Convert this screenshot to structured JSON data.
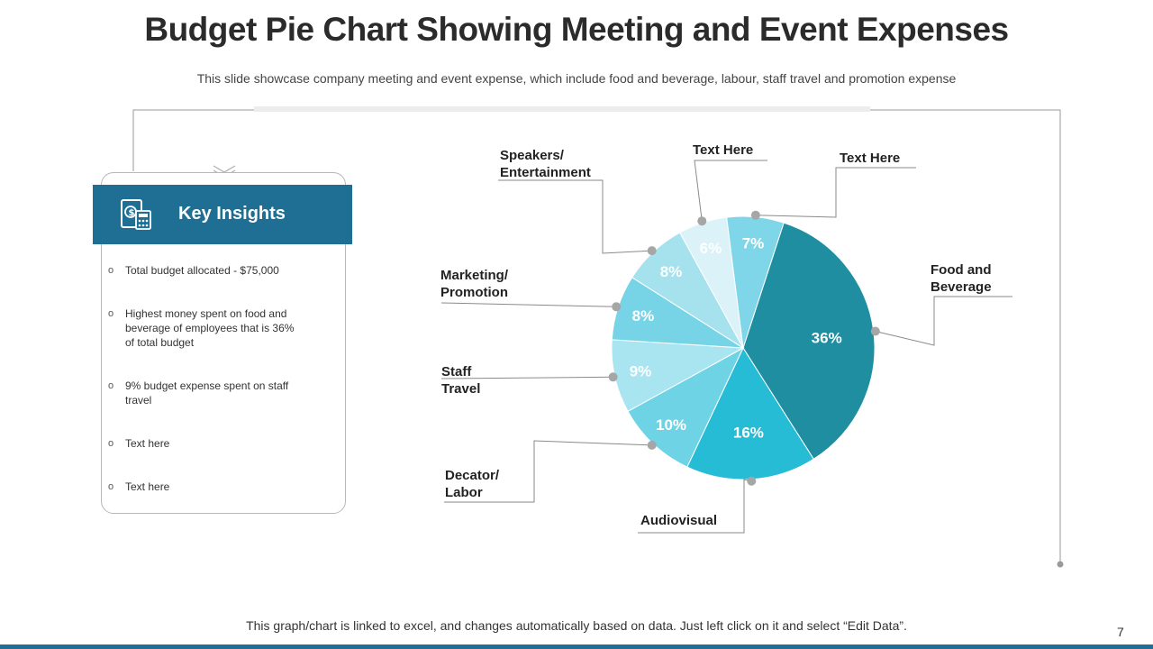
{
  "slide": {
    "title": "Budget Pie Chart Showing Meeting and Event Expenses",
    "subtitle": "This slide showcase company meeting and event expense, which include food and beverage, labour, staff travel and promotion expense",
    "footnote": "This graph/chart is linked to excel, and changes automatically based on data.  Just left click on it and select “Edit Data”.",
    "page_number": "7"
  },
  "insights": {
    "title": "Key Insights",
    "bullet_symbol": "o",
    "items": [
      "Total budget allocated - $75,000",
      "Highest money spent on food and beverage  of employees that is 36% of total budget",
      "9% budget expense spent on staff travel",
      "Text here",
      "Text here"
    ]
  },
  "colors": {
    "header": "#1f6f95",
    "slices": [
      "#1e8ea0",
      "#26bcd6",
      "#6fd3e6",
      "#a9e5f0",
      "#77d4e7",
      "#a5e2ee",
      "#daf2f8",
      "#7ed6e8"
    ]
  },
  "chart_data": {
    "type": "pie",
    "title": "Budget Pie Chart Showing Meeting and Event Expenses",
    "slices": [
      {
        "label": "Food and Beverage",
        "value": 36,
        "display": "36%"
      },
      {
        "label": "Audiovisual",
        "value": 16,
        "display": "16%"
      },
      {
        "label": "Decator/ Labor",
        "value": 10,
        "display": "10%"
      },
      {
        "label": "Staff Travel",
        "value": 9,
        "display": "9%"
      },
      {
        "label": "Marketing/ Promotion",
        "value": 8,
        "display": "8%"
      },
      {
        "label": "Speakers/ Entertainment",
        "value": 8,
        "display": "8%"
      },
      {
        "label": "Text Here",
        "value": 6,
        "display": "6%"
      },
      {
        "label": "Text Here",
        "value": 7,
        "display": "7%"
      }
    ],
    "label_lines": [
      [
        "Food and",
        "Beverage"
      ],
      [
        "Audiovisual"
      ],
      [
        "Decator/",
        "Labor"
      ],
      [
        "Staff",
        "Travel"
      ],
      [
        "Marketing/",
        "Promotion"
      ],
      [
        "Speakers/",
        "Entertainment"
      ],
      [
        "Text Here"
      ],
      [
        "Text Here"
      ]
    ]
  }
}
